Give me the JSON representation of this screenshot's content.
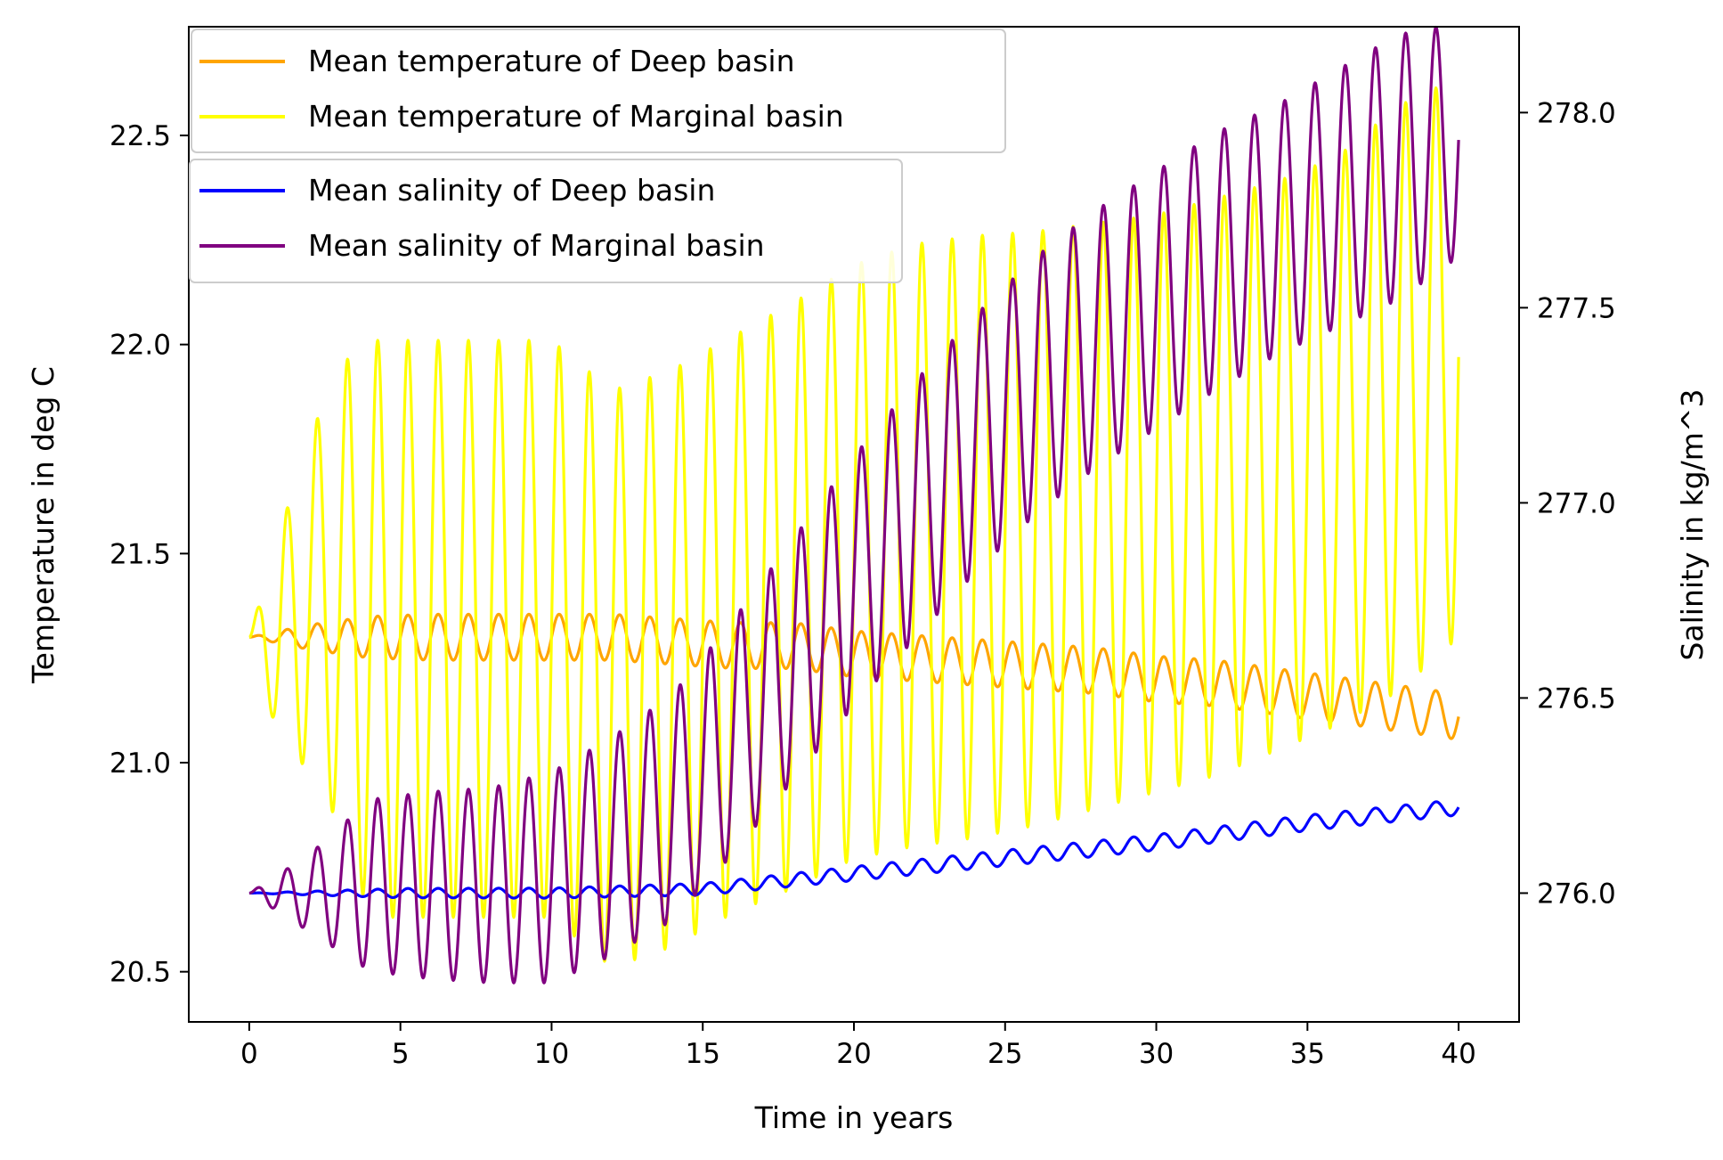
{
  "chart_data": {
    "type": "line",
    "title": "",
    "xlabel": "Time in years",
    "ylabel_left": "Temperature in deg C",
    "ylabel_right": "Salinity in kg/m^3",
    "xlim": [
      -2,
      42
    ],
    "ylim_left": [
      20.38,
      22.76
    ],
    "ylim_right": [
      275.67,
      278.22
    ],
    "x_ticks": [
      0,
      5,
      10,
      15,
      20,
      25,
      30,
      35,
      40
    ],
    "y_ticks_left": [
      20.5,
      21.0,
      21.5,
      22.0,
      22.5
    ],
    "y_ticks_right": [
      276.0,
      276.5,
      277.0,
      277.5,
      278.0
    ],
    "grid": false,
    "legends": [
      {
        "placement": "upper-left",
        "entries": [
          {
            "label": "Mean temperature of Deep basin",
            "color": "#ffa500"
          },
          {
            "label": "Mean temperature of Marginal basin",
            "color": "#ffff00"
          }
        ]
      },
      {
        "placement": "upper-left",
        "entries": [
          {
            "label": "Mean salinity of Deep basin",
            "color": "#0000ff"
          },
          {
            "label": "Mean salinity of Marginal basin",
            "color": "#800080"
          }
        ]
      }
    ],
    "series": [
      {
        "name": "Mean temperature of Deep basin",
        "axis": "left",
        "color": "#ffa500",
        "period_years": 1,
        "x": [
          0,
          2,
          4,
          6,
          8,
          10,
          12,
          14,
          16,
          18,
          20,
          22,
          24,
          26,
          28,
          30,
          32,
          34,
          36,
          38,
          40
        ],
        "mean": [
          21.3,
          21.3,
          21.3,
          21.3,
          21.3,
          21.3,
          21.3,
          21.29,
          21.28,
          21.28,
          21.26,
          21.25,
          21.24,
          21.23,
          21.22,
          21.2,
          21.19,
          21.17,
          21.15,
          21.13,
          21.11
        ],
        "amplitude": [
          0.0,
          0.03,
          0.05,
          0.055,
          0.055,
          0.055,
          0.055,
          0.055,
          0.055,
          0.055,
          0.055,
          0.055,
          0.055,
          0.055,
          0.055,
          0.055,
          0.055,
          0.055,
          0.055,
          0.055,
          0.055
        ]
      },
      {
        "name": "Mean temperature of Marginal basin",
        "axis": "left",
        "color": "#ffff00",
        "period_years": 1,
        "x": [
          0,
          1,
          2,
          3,
          4,
          6,
          8,
          10,
          12,
          14,
          16,
          18,
          20,
          22,
          24,
          26,
          28,
          30,
          32,
          34,
          36,
          38,
          40
        ],
        "mean": [
          21.3,
          21.3,
          21.38,
          21.4,
          21.32,
          21.32,
          21.32,
          21.32,
          21.2,
          21.25,
          21.33,
          21.4,
          21.48,
          21.52,
          21.54,
          21.56,
          21.59,
          21.62,
          21.66,
          21.71,
          21.77,
          21.87,
          21.97
        ],
        "amplitude": [
          0.0,
          0.25,
          0.4,
          0.55,
          0.69,
          0.69,
          0.69,
          0.69,
          0.69,
          0.69,
          0.69,
          0.7,
          0.71,
          0.72,
          0.72,
          0.71,
          0.7,
          0.69,
          0.69,
          0.68,
          0.68,
          0.7,
          0.67
        ]
      },
      {
        "name": "Mean salinity of Deep basin",
        "axis": "right",
        "color": "#0000ff",
        "period_years": 1,
        "x": [
          0,
          5,
          10,
          15,
          20,
          25,
          30,
          35,
          40
        ],
        "mean": [
          276.0,
          276.0,
          276.0,
          276.01,
          276.05,
          276.09,
          276.13,
          276.18,
          276.22
        ],
        "amplitude": [
          0.0,
          0.012,
          0.013,
          0.015,
          0.018,
          0.02,
          0.02,
          0.02,
          0.02
        ]
      },
      {
        "name": "Mean salinity of Marginal basin",
        "axis": "right",
        "color": "#800080",
        "period_years": 1,
        "x": [
          0,
          2,
          4,
          6,
          8,
          10,
          12,
          14,
          16,
          18,
          20,
          22,
          24,
          26,
          28,
          30,
          32,
          34,
          36,
          38,
          40
        ],
        "mean": [
          276.0,
          276.0,
          276.02,
          276.02,
          276.02,
          276.04,
          276.12,
          276.22,
          276.4,
          276.6,
          276.8,
          276.98,
          277.15,
          277.3,
          277.42,
          277.52,
          277.62,
          277.7,
          277.78,
          277.86,
          277.93
        ],
        "amplitude": [
          0.0,
          0.1,
          0.22,
          0.24,
          0.25,
          0.27,
          0.28,
          0.29,
          0.3,
          0.31,
          0.32,
          0.33,
          0.33,
          0.33,
          0.33,
          0.33,
          0.33,
          0.32,
          0.33,
          0.34,
          0.3
        ]
      }
    ]
  }
}
